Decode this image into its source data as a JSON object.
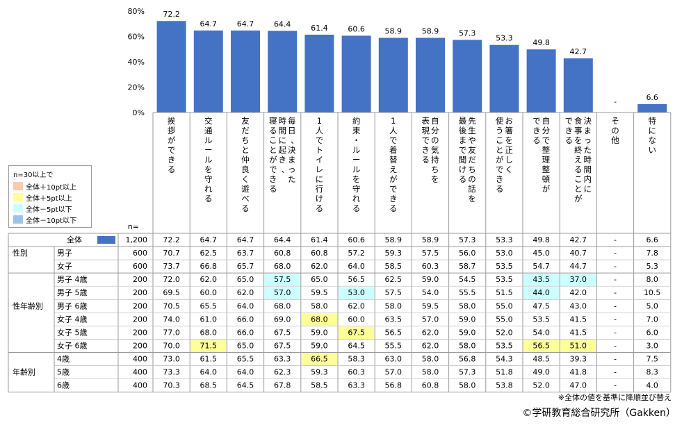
{
  "chart_data": {
    "type": "bar",
    "ylim": [
      0,
      80
    ],
    "yticks": [
      "0%",
      "20%",
      "40%",
      "60%",
      "80%"
    ],
    "n_label": "n=",
    "categories": [
      "挨拶ができる",
      "交通ルールを守れる",
      "友だちと仲良く遊べる",
      "毎日、決まった|時間に起き、|寝ることができる",
      "1人でトイレに行ける",
      "約束・ルールを守れる",
      "1人で着替えができる",
      "自分の気持ちを|表現できる",
      "先生や友だちの話を|最後まで聞ける",
      "お箸を正しく|使うことができる",
      "自分で整理整頓が|できる",
      "決まった時間内に|食事を終えることが|できる",
      "その他",
      "特にない"
    ],
    "values": [
      72.2,
      64.7,
      64.7,
      64.4,
      61.4,
      60.6,
      58.9,
      58.9,
      57.3,
      53.3,
      49.8,
      42.7,
      null,
      6.6
    ],
    "value_labels": [
      "72.2",
      "64.7",
      "64.7",
      "64.4",
      "61.4",
      "60.6",
      "58.9",
      "58.9",
      "57.3",
      "53.3",
      "49.8",
      "42.7",
      "-",
      "6.6"
    ],
    "bar_color": "#4472C4",
    "legend": {
      "title": "n=30以上で",
      "items": [
        {
          "label": "全体＋10pt以上",
          "color": "#F8CBAD"
        },
        {
          "label": "全体＋5pt以上",
          "color": "#FFFF99"
        },
        {
          "label": "全体－5pt以下",
          "color": "#CCFFFF"
        },
        {
          "label": "全体－10pt以下",
          "color": "#9DC3E6"
        }
      ]
    },
    "table": [
      {
        "group": "",
        "label": "全体",
        "n": "1,200",
        "values": [
          "72.2",
          "64.7",
          "64.7",
          "64.4",
          "61.4",
          "60.6",
          "58.9",
          "58.9",
          "57.3",
          "53.3",
          "49.8",
          "42.7",
          "-",
          "6.6"
        ],
        "highlights": {}
      },
      {
        "group": "性別",
        "label": "男子",
        "n": "600",
        "values": [
          "70.7",
          "62.5",
          "63.7",
          "60.8",
          "60.8",
          "57.2",
          "59.3",
          "57.5",
          "56.0",
          "53.0",
          "45.0",
          "40.7",
          "-",
          "7.8"
        ],
        "highlights": {}
      },
      {
        "group": "",
        "label": "女子",
        "n": "600",
        "values": [
          "73.7",
          "66.8",
          "65.7",
          "68.0",
          "62.0",
          "64.0",
          "58.5",
          "60.3",
          "58.7",
          "53.5",
          "54.7",
          "44.7",
          "-",
          "5.3"
        ],
        "highlights": {}
      },
      {
        "group": "",
        "label": "男子 4歳",
        "n": "200",
        "values": [
          "72.0",
          "62.0",
          "65.0",
          "57.5",
          "65.0",
          "56.5",
          "62.5",
          "59.0",
          "54.5",
          "53.5",
          "43.5",
          "37.0",
          "-",
          "8.0"
        ],
        "highlights": {
          "3": "#CCFFFF",
          "10": "#CCFFFF",
          "11": "#CCFFFF"
        }
      },
      {
        "group": "",
        "label": "男子 5歳",
        "n": "200",
        "values": [
          "69.5",
          "60.0",
          "62.0",
          "57.0",
          "59.5",
          "53.0",
          "57.5",
          "54.0",
          "55.5",
          "51.5",
          "44.0",
          "42.0",
          "-",
          "10.5"
        ],
        "highlights": {
          "3": "#CCFFFF",
          "5": "#CCFFFF",
          "10": "#CCFFFF"
        }
      },
      {
        "group": "性年齢別",
        "label": "男子 6歳",
        "n": "200",
        "values": [
          "70.5",
          "65.5",
          "64.0",
          "68.0",
          "58.0",
          "62.0",
          "58.0",
          "59.5",
          "58.0",
          "55.0",
          "47.5",
          "43.0",
          "-",
          "5.0"
        ],
        "highlights": {}
      },
      {
        "group": "",
        "label": "女子 4歳",
        "n": "200",
        "values": [
          "74.0",
          "61.0",
          "66.0",
          "69.0",
          "68.0",
          "60.0",
          "63.5",
          "57.0",
          "59.0",
          "55.0",
          "53.5",
          "41.5",
          "-",
          "7.0"
        ],
        "highlights": {
          "4": "#FFFF99"
        }
      },
      {
        "group": "",
        "label": "女子 5歳",
        "n": "200",
        "values": [
          "77.0",
          "68.0",
          "66.0",
          "67.5",
          "59.0",
          "67.5",
          "56.5",
          "62.0",
          "59.0",
          "52.0",
          "54.0",
          "41.5",
          "-",
          "6.0"
        ],
        "highlights": {
          "5": "#FFFF99"
        }
      },
      {
        "group": "",
        "label": "女子 6歳",
        "n": "200",
        "values": [
          "70.0",
          "71.5",
          "65.0",
          "67.5",
          "59.0",
          "64.5",
          "55.5",
          "62.0",
          "58.0",
          "53.5",
          "56.5",
          "51.0",
          "-",
          "3.0"
        ],
        "highlights": {
          "1": "#FFFF99",
          "10": "#FFFF99",
          "11": "#FFFF99"
        }
      },
      {
        "group": "",
        "label": "4歳",
        "n": "400",
        "values": [
          "73.0",
          "61.5",
          "65.5",
          "63.3",
          "66.5",
          "58.3",
          "63.0",
          "58.0",
          "56.8",
          "54.3",
          "48.5",
          "39.3",
          "-",
          "7.5"
        ],
        "highlights": {
          "4": "#FFFF99"
        }
      },
      {
        "group": "年齢別",
        "label": "5歳",
        "n": "400",
        "values": [
          "73.3",
          "64.0",
          "64.0",
          "62.3",
          "59.3",
          "60.3",
          "57.0",
          "58.0",
          "57.3",
          "51.8",
          "49.0",
          "41.8",
          "-",
          "8.3"
        ],
        "highlights": {}
      },
      {
        "group": "",
        "label": "6歳",
        "n": "400",
        "values": [
          "70.3",
          "68.5",
          "64.5",
          "67.8",
          "58.5",
          "63.3",
          "56.8",
          "60.8",
          "58.0",
          "53.8",
          "52.0",
          "47.0",
          "-",
          "4.0"
        ],
        "highlights": {}
      }
    ]
  },
  "footnote": "※全体の値を基準に降順並び替え",
  "copyright": "©学研教育総合研究所（Gakken）"
}
